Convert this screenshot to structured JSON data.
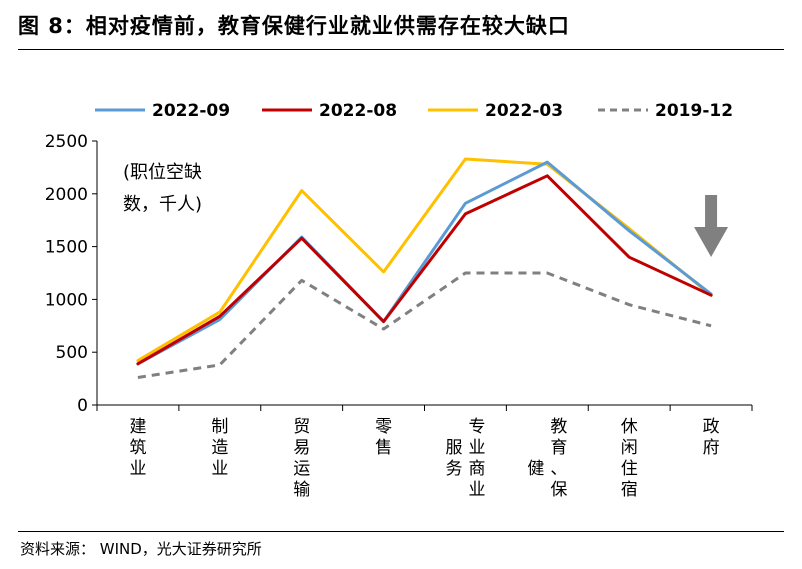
{
  "figure": {
    "title": "图 8：相对疫情前，教育保健行业就业供需存在较大缺口",
    "source": "资料来源：   WIND，光大证券研究所"
  },
  "chart_data": {
    "type": "line",
    "title": "图 8：相对疫情前，教育保健行业就业供需存在较大缺口",
    "unit_note": [
      "(职位空缺",
      "数，千人)"
    ],
    "ylim": [
      0,
      2500
    ],
    "yticks": [
      0,
      500,
      1000,
      1500,
      2000,
      2500
    ],
    "categories": [
      "建筑业",
      "制造业",
      "贸易运输",
      "零售",
      "专业商业服务",
      "教育、保健",
      "休闲住宿",
      "政府"
    ],
    "category_label_columns": [
      [
        [
          "建",
          "筑",
          "业"
        ]
      ],
      [
        [
          "制",
          "造",
          "业"
        ]
      ],
      [
        [
          "贸",
          "易",
          "运",
          "输"
        ]
      ],
      [
        [
          "零",
          "售"
        ]
      ],
      [
        [
          "服",
          "务"
        ],
        [
          "专",
          "业",
          "商",
          "业"
        ]
      ],
      [
        [
          "健"
        ],
        [
          "教",
          "育",
          "、",
          "保"
        ]
      ],
      [
        [
          "休",
          "闲",
          "住",
          "宿"
        ]
      ],
      [
        [
          "政",
          "府"
        ]
      ]
    ],
    "legend_position": "top",
    "series": [
      {
        "name": "2022-09",
        "color": "#5b9bd5",
        "dash": "solid",
        "values": [
          390,
          810,
          1590,
          790,
          1910,
          2300,
          1650,
          1050
        ]
      },
      {
        "name": "2022-08",
        "color": "#c00000",
        "dash": "solid",
        "values": [
          390,
          840,
          1580,
          790,
          1810,
          2170,
          1400,
          1040
        ]
      },
      {
        "name": "2022-03",
        "color": "#ffc000",
        "dash": "solid",
        "values": [
          420,
          880,
          2030,
          1260,
          2330,
          2280,
          1670,
          1040
        ]
      },
      {
        "name": "2019-12",
        "color": "#808080",
        "dash": "dashed",
        "values": [
          260,
          380,
          1180,
          720,
          1250,
          1250,
          950,
          750
        ]
      }
    ],
    "annotations": [
      {
        "type": "down-arrow",
        "category": "政府",
        "color": "#808080"
      }
    ]
  }
}
